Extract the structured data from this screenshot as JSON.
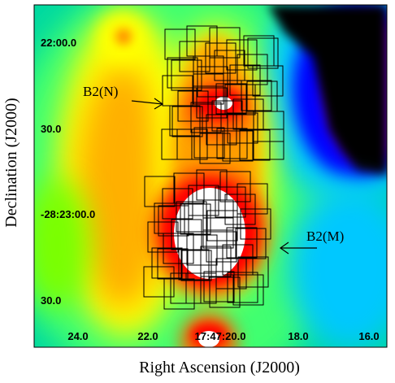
{
  "labels": {
    "ylabel": "Declination (J2000)",
    "xlabel": "Right Ascension (J2000)",
    "north": "B2(N)",
    "middle": "B2(M)"
  },
  "dec_ticks": [
    "22:00.0",
    "30.0",
    "-28:23:00.0",
    "30.0"
  ],
  "ra_ticks": [
    "24.0",
    "22.0",
    "17:47:20.0",
    "18.0",
    "16.0"
  ],
  "colormap": [
    "#000000",
    "#7a00d9",
    "#0000ff",
    "#00c8ff",
    "#00ff7a",
    "#7aff00",
    "#ffff00",
    "#ff8c00",
    "#ff0000",
    "#ffffff"
  ]
}
